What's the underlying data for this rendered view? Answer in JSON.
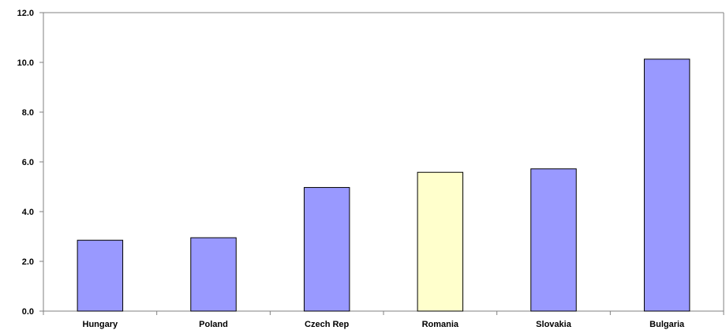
{
  "chart_data": {
    "type": "bar",
    "title": "",
    "xlabel": "",
    "ylabel": "",
    "categories": [
      "Hungary",
      "Poland",
      "Czech Rep",
      "Romania",
      "Slovakia",
      "Bulgaria"
    ],
    "values": [
      2.85,
      2.95,
      4.97,
      5.58,
      5.72,
      10.13
    ],
    "ylim": [
      0,
      12
    ],
    "yticks": [
      "0.0",
      "2.0",
      "4.0",
      "6.0",
      "8.0",
      "10.0",
      "12.0"
    ],
    "grid": false,
    "legend": "none",
    "colors": {
      "default_bar": "#9999ff",
      "highlight_bar": "#ffffcc",
      "bar_stroke": "#000000",
      "axis": "#808080"
    },
    "highlight_category": "Romania"
  }
}
